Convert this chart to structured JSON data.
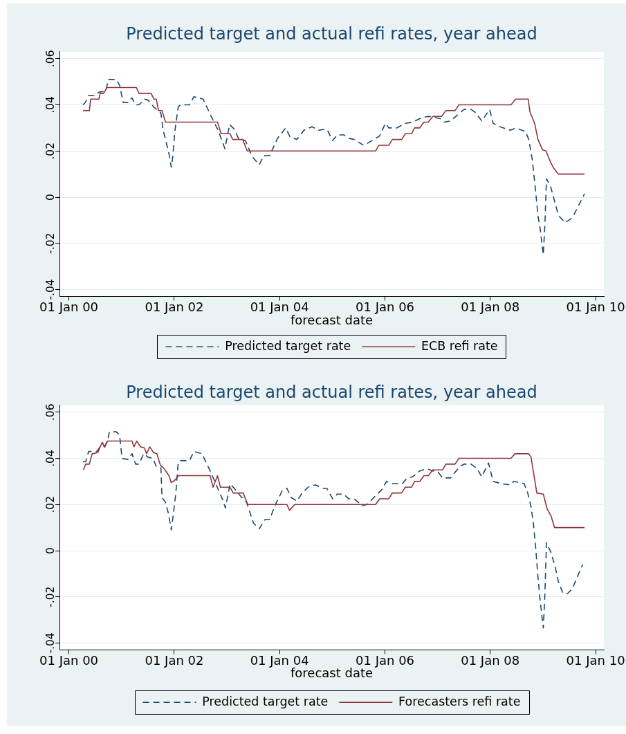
{
  "chart_data": [
    {
      "type": "line",
      "title": "Predicted target and actual refi rates, year ahead",
      "xlabel": "forecast date",
      "xlim": [
        "1999-10-28",
        "2010-02-27"
      ],
      "xticks": [
        {
          "value": "2000-01-01",
          "label": "01 Jan 00"
        },
        {
          "value": "2002-01-01",
          "label": "01 Jan 02"
        },
        {
          "value": "2004-01-01",
          "label": "01 Jan 04"
        },
        {
          "value": "2006-01-01",
          "label": "01 Jan 06"
        },
        {
          "value": "2008-01-01",
          "label": "01 Jan 08"
        },
        {
          "value": "2010-01-01",
          "label": "01 Jan 10"
        }
      ],
      "ylim": [
        -0.043,
        0.063
      ],
      "yticks": [
        {
          "value": -0.04,
          "label": "-.04"
        },
        {
          "value": -0.02,
          "label": "-.02"
        },
        0,
        {
          "value": 0.02,
          "label": ".02"
        },
        {
          "value": 0.04,
          "label": ".04"
        },
        {
          "value": 0.06,
          "label": ".06"
        }
      ],
      "grid": "y",
      "legend": "bottom",
      "series": [
        {
          "name": "Predicted target rate",
          "color": "#1a476f",
          "line_style": "dashed",
          "x": [
            "2000-04-08",
            "2000-04-24",
            "2000-05-17",
            "2000-06-26",
            "2000-07-28",
            "2000-09-14",
            "2000-09-30",
            "2000-11-25",
            "2000-12-18",
            "2001-01-12",
            "2001-02-13",
            "2001-03-14",
            "2001-04-08",
            "2001-05-01",
            "2001-06-10",
            "2001-07-04",
            "2001-08-13",
            "2001-09-30",
            "2001-10-16",
            "2001-11-09",
            "2001-11-30",
            "2001-12-11",
            "2001-12-22",
            "2002-01-04",
            "2002-01-28",
            "2002-02-13",
            "2002-04-16",
            "2002-05-17",
            "2002-07-20",
            "2002-09-14",
            "2002-11-01",
            "2002-12-18",
            "2003-01-20",
            "2003-02-21",
            "2003-03-22",
            "2003-05-09",
            "2003-06-26",
            "2003-08-13",
            "2003-09-14",
            "2003-10-24",
            "2003-12-18",
            "2004-02-13",
            "2004-03-14",
            "2004-05-01",
            "2004-06-18",
            "2004-08-13",
            "2004-09-30",
            "2004-11-24",
            "2005-01-03",
            "2005-02-04",
            "2005-03-22",
            "2005-04-23",
            "2005-06-02",
            "2005-08-05",
            "2005-09-06",
            "2005-11-25",
            "2006-01-04",
            "2006-01-28",
            "2006-03-23",
            "2006-05-25",
            "2006-07-12",
            "2006-09-15",
            "2006-11-02",
            "2007-01-20",
            "2007-02-14",
            "2007-04-01",
            "2007-06-04",
            "2007-07-05",
            "2007-08-22",
            "2007-09-24",
            "2007-11-03",
            "2007-12-28",
            "2008-01-21",
            "2008-03-09",
            "2008-05-19",
            "2008-06-28",
            "2008-08-08",
            "2008-09-01",
            "2008-09-24",
            "2008-10-18",
            "2008-11-11",
            "2008-11-27",
            "2008-12-13",
            "2009-01-03",
            "2009-01-14",
            "2009-01-25",
            "2009-02-23",
            "2009-03-17",
            "2009-04-18",
            "2009-06-05",
            "2009-07-23",
            "2009-09-02",
            "2009-10-16"
          ],
          "values": [
            0.04,
            0.041,
            0.044,
            0.044,
            0.0455,
            0.046,
            0.051,
            0.051,
            0.0485,
            0.041,
            0.041,
            0.043,
            0.04,
            0.04,
            0.0425,
            0.042,
            0.039,
            0.0365,
            0.029,
            0.023,
            0.0175,
            0.013,
            0.0175,
            0.028,
            0.039,
            0.04,
            0.04,
            0.0435,
            0.0425,
            0.035,
            0.029,
            0.021,
            0.0315,
            0.0295,
            0.0255,
            0.0245,
            0.0175,
            0.014,
            0.018,
            0.018,
            0.0255,
            0.03,
            0.026,
            0.025,
            0.029,
            0.0305,
            0.029,
            0.0295,
            0.0245,
            0.027,
            0.027,
            0.0255,
            0.025,
            0.0225,
            0.0235,
            0.0265,
            0.032,
            0.03,
            0.03,
            0.032,
            0.0325,
            0.0345,
            0.035,
            0.034,
            0.0325,
            0.033,
            0.0365,
            0.038,
            0.038,
            0.0365,
            0.033,
            0.038,
            0.032,
            0.0305,
            0.029,
            0.03,
            0.029,
            0.0285,
            0.025,
            0.0165,
            0.0025,
            -0.008,
            -0.014,
            -0.025,
            -0.012,
            0.008,
            0.0045,
            -0.0005,
            -0.008,
            -0.011,
            -0.009,
            -0.004,
            0.0015
          ]
        },
        {
          "name": "ECB refi rate",
          "color": "#90353b",
          "line_style": "solid",
          "x": [
            "2000-04-08",
            "2000-05-22",
            "2000-06-01",
            "2000-07-28",
            "2000-08-05",
            "2000-08-29",
            "2000-09-22",
            "2001-04-13",
            "2001-05-01",
            "2001-07-24",
            "2001-08-13",
            "2001-08-29",
            "2001-09-14",
            "2001-10-08",
            "2001-11-01",
            "2002-10-28",
            "2002-11-22",
            "2003-01-23",
            "2003-02-10",
            "2003-04-20",
            "2003-05-22",
            "2005-10-28",
            "2005-11-20",
            "2006-01-28",
            "2006-02-21",
            "2006-04-27",
            "2006-05-22",
            "2006-07-05",
            "2006-07-25",
            "2006-08-30",
            "2006-09-28",
            "2006-10-29",
            "2006-11-29",
            "2007-01-29",
            "2007-02-27",
            "2007-05-02",
            "2007-05-29",
            "2008-05-24",
            "2008-06-25",
            "2008-09-20",
            "2008-10-02",
            "2008-11-04",
            "2008-11-27",
            "2008-12-29",
            "2009-01-22",
            "2009-02-23",
            "2009-03-17",
            "2009-04-18",
            "2009-10-16"
          ],
          "values": [
            0.0375,
            0.0375,
            0.0425,
            0.0425,
            0.045,
            0.045,
            0.0475,
            0.0475,
            0.045,
            0.045,
            0.0425,
            0.0425,
            0.0375,
            0.0375,
            0.0325,
            0.0325,
            0.0275,
            0.0275,
            0.025,
            0.025,
            0.02,
            0.02,
            0.0225,
            0.0225,
            0.025,
            0.025,
            0.0275,
            0.0275,
            0.03,
            0.03,
            0.0325,
            0.0325,
            0.035,
            0.035,
            0.0375,
            0.0375,
            0.04,
            0.04,
            0.0425,
            0.0425,
            0.037,
            0.032,
            0.025,
            0.0205,
            0.02,
            0.015,
            0.0125,
            0.01,
            0.01
          ]
        }
      ]
    },
    {
      "type": "line",
      "title": "Predicted target and actual refi rates, year ahead",
      "xlabel": "forecast date",
      "xlim": [
        "1999-10-28",
        "2010-02-27"
      ],
      "xticks": [
        {
          "value": "2000-01-01",
          "label": "01 Jan 00"
        },
        {
          "value": "2002-01-01",
          "label": "01 Jan 02"
        },
        {
          "value": "2004-01-01",
          "label": "01 Jan 04"
        },
        {
          "value": "2006-01-01",
          "label": "01 Jan 06"
        },
        {
          "value": "2008-01-01",
          "label": "01 Jan 08"
        },
        {
          "value": "2010-01-01",
          "label": "01 Jan 10"
        }
      ],
      "ylim": [
        -0.043,
        0.063
      ],
      "yticks": [
        {
          "value": -0.04,
          "label": "-.04"
        },
        {
          "value": -0.02,
          "label": "-.02"
        },
        0,
        {
          "value": 0.02,
          "label": ".02"
        },
        {
          "value": 0.04,
          "label": ".04"
        },
        {
          "value": 0.06,
          "label": ".06"
        }
      ],
      "grid": "y",
      "legend": "bottom",
      "series": [
        {
          "name": "Predicted target rate",
          "color": "#1a476f",
          "line_style": "dashed",
          "x": [
            "2000-04-08",
            "2000-04-27",
            "2000-05-17",
            "2000-07-12",
            "2000-08-05",
            "2000-09-07",
            "2000-09-30",
            "2000-10-08",
            "2000-11-25",
            "2000-12-18",
            "2001-01-04",
            "2001-02-13",
            "2001-03-14",
            "2001-04-08",
            "2001-05-01",
            "2001-06-03",
            "2001-07-04",
            "2001-08-06",
            "2001-08-29",
            "2001-09-30",
            "2001-10-08",
            "2001-11-01",
            "2001-11-22",
            "2001-12-11",
            "2001-12-26",
            "2002-01-12",
            "2002-01-28",
            "2002-02-13",
            "2002-04-16",
            "2002-05-17",
            "2002-07-12",
            "2002-09-07",
            "2002-10-16",
            "2002-12-03",
            "2002-12-22",
            "2003-01-23",
            "2003-02-28",
            "2003-04-08",
            "2003-05-17",
            "2003-07-04",
            "2003-08-13",
            "2003-09-22",
            "2003-10-24",
            "2003-12-03",
            "2004-01-20",
            "2004-02-21",
            "2004-03-22",
            "2004-05-01",
            "2004-06-11",
            "2004-07-28",
            "2004-09-07",
            "2004-10-24",
            "2004-11-24",
            "2005-01-03",
            "2005-02-04",
            "2005-03-22",
            "2005-04-23",
            "2005-06-02",
            "2005-07-27",
            "2005-08-29",
            "2005-11-01",
            "2005-12-11",
            "2006-01-12",
            "2006-02-13",
            "2006-05-02",
            "2006-06-03",
            "2006-07-12",
            "2006-08-30",
            "2006-10-17",
            "2006-12-04",
            "2007-01-05",
            "2007-02-06",
            "2007-04-01",
            "2007-06-04",
            "2007-07-05",
            "2007-08-22",
            "2007-10-02",
            "2007-11-03",
            "2007-12-20",
            "2008-01-21",
            "2008-03-24",
            "2008-05-19",
            "2008-06-13",
            "2008-07-30",
            "2008-08-23",
            "2008-09-17",
            "2008-10-10",
            "2008-10-26",
            "2008-11-11",
            "2008-11-27",
            "2008-12-13",
            "2009-01-03",
            "2009-01-14",
            "2009-01-25",
            "2009-02-23",
            "2009-03-25",
            "2009-04-18",
            "2009-05-20",
            "2009-06-21",
            "2009-07-23",
            "2009-09-02",
            "2009-10-03"
          ],
          "values": [
            0.0385,
            0.0385,
            0.043,
            0.043,
            0.045,
            0.045,
            0.049,
            0.0515,
            0.0515,
            0.05,
            0.04,
            0.0395,
            0.042,
            0.0375,
            0.0375,
            0.042,
            0.0405,
            0.04,
            0.0365,
            0.036,
            0.023,
            0.021,
            0.016,
            0.009,
            0.016,
            0.025,
            0.038,
            0.039,
            0.039,
            0.043,
            0.042,
            0.0345,
            0.029,
            0.022,
            0.0185,
            0.029,
            0.0265,
            0.0235,
            0.021,
            0.012,
            0.0095,
            0.0135,
            0.0135,
            0.02,
            0.026,
            0.027,
            0.023,
            0.0215,
            0.0255,
            0.028,
            0.0285,
            0.027,
            0.027,
            0.0225,
            0.0245,
            0.0245,
            0.0225,
            0.0225,
            0.0195,
            0.02,
            0.024,
            0.0265,
            0.03,
            0.029,
            0.029,
            0.0315,
            0.032,
            0.0345,
            0.0355,
            0.0345,
            0.034,
            0.0315,
            0.0315,
            0.0365,
            0.0375,
            0.0375,
            0.0355,
            0.032,
            0.038,
            0.03,
            0.029,
            0.0285,
            0.03,
            0.0295,
            0.029,
            0.025,
            0.019,
            0.012,
            0.0015,
            -0.0115,
            -0.022,
            -0.0335,
            -0.019,
            0.0035,
            -0.0005,
            -0.0065,
            -0.0135,
            -0.0185,
            -0.0185,
            -0.0165,
            -0.0105,
            -0.006
          ]
        },
        {
          "name": "Forecasters refi rate",
          "color": "#90353b",
          "line_style": "solid",
          "x": [
            "2000-04-11",
            "2000-04-27",
            "2000-05-22",
            "2000-06-11",
            "2000-07-20",
            "2000-08-05",
            "2000-08-21",
            "2000-09-02",
            "2000-09-27",
            "2001-03-14",
            "2001-03-27",
            "2001-04-16",
            "2001-05-12",
            "2001-06-08",
            "2001-06-23",
            "2001-07-15",
            "2001-08-10",
            "2001-09-02",
            "2001-09-27",
            "2001-10-16",
            "2001-11-09",
            "2001-11-25",
            "2001-12-11",
            "2002-01-04",
            "2002-01-31",
            "2002-09-07",
            "2002-09-27",
            "2002-10-28",
            "2002-11-17",
            "2003-01-23",
            "2003-02-13",
            "2003-04-24",
            "2003-05-25",
            "2004-02-21",
            "2004-03-10",
            "2004-04-16",
            "2005-10-28",
            "2005-11-25",
            "2006-01-28",
            "2006-02-21",
            "2006-04-27",
            "2006-05-22",
            "2006-07-05",
            "2006-07-25",
            "2006-08-30",
            "2006-09-28",
            "2006-10-29",
            "2006-11-29",
            "2007-02-06",
            "2007-02-27",
            "2007-05-02",
            "2007-05-29",
            "2008-05-24",
            "2008-06-20",
            "2008-09-24",
            "2008-10-10",
            "2008-11-19",
            "2009-01-03",
            "2009-01-30",
            "2009-02-26",
            "2009-03-22",
            "2009-10-16"
          ],
          "values": [
            0.035,
            0.0375,
            0.0375,
            0.042,
            0.0425,
            0.045,
            0.047,
            0.045,
            0.0475,
            0.0475,
            0.045,
            0.0475,
            0.045,
            0.0445,
            0.042,
            0.045,
            0.0425,
            0.042,
            0.037,
            0.036,
            0.034,
            0.0325,
            0.0295,
            0.0305,
            0.0325,
            0.0325,
            0.0275,
            0.0325,
            0.0275,
            0.0275,
            0.025,
            0.025,
            0.02,
            0.02,
            0.0175,
            0.02,
            0.02,
            0.0225,
            0.0225,
            0.025,
            0.025,
            0.0275,
            0.0275,
            0.03,
            0.03,
            0.0325,
            0.0325,
            0.035,
            0.035,
            0.0375,
            0.0375,
            0.04,
            0.04,
            0.042,
            0.042,
            0.0405,
            0.025,
            0.0245,
            0.018,
            0.015,
            0.01,
            0.01
          ]
        }
      ]
    }
  ]
}
